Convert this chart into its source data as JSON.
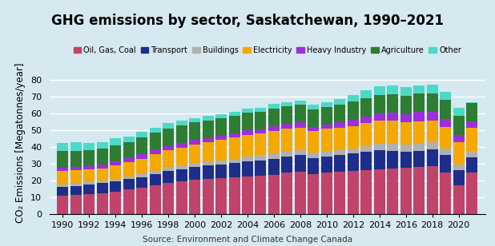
{
  "years": [
    1990,
    1991,
    1992,
    1993,
    1994,
    1995,
    1996,
    1997,
    1998,
    1999,
    2000,
    2001,
    2002,
    2003,
    2004,
    2005,
    2006,
    2007,
    2008,
    2009,
    2010,
    2011,
    2012,
    2013,
    2014,
    2015,
    2016,
    2017,
    2018,
    2019,
    2020,
    2021
  ],
  "sectors": {
    "Oil, Gas, Coal": [
      11.0,
      11.5,
      12.0,
      12.5,
      13.5,
      14.5,
      15.5,
      17.0,
      18.5,
      19.5,
      20.5,
      21.0,
      21.5,
      22.0,
      22.5,
      23.0,
      23.5,
      24.5,
      25.0,
      24.0,
      24.5,
      25.0,
      25.5,
      26.0,
      26.5,
      27.0,
      27.5,
      28.0,
      28.5,
      24.5,
      17.0,
      24.5
    ],
    "Transport": [
      5.0,
      5.2,
      5.5,
      5.8,
      6.0,
      6.2,
      6.5,
      6.8,
      7.0,
      7.2,
      7.5,
      7.8,
      8.0,
      8.5,
      8.8,
      9.0,
      9.5,
      9.8,
      10.0,
      9.5,
      9.8,
      10.0,
      10.5,
      11.0,
      11.5,
      10.5,
      9.5,
      9.8,
      10.0,
      10.5,
      9.0,
      9.5
    ],
    "Buildings": [
      1.5,
      1.5,
      1.5,
      1.5,
      1.5,
      1.5,
      2.0,
      2.0,
      2.5,
      2.5,
      2.5,
      2.5,
      2.5,
      2.5,
      3.0,
      3.0,
      3.0,
      3.0,
      3.0,
      3.0,
      3.0,
      3.0,
      3.0,
      3.5,
      4.0,
      4.5,
      4.5,
      4.5,
      4.5,
      4.0,
      3.5,
      3.5
    ],
    "Electricity": [
      8.0,
      8.0,
      7.5,
      7.5,
      8.0,
      8.5,
      9.0,
      10.0,
      10.0,
      10.5,
      11.0,
      11.5,
      12.0,
      12.5,
      13.0,
      13.0,
      13.5,
      13.5,
      13.5,
      13.0,
      13.5,
      13.5,
      13.5,
      13.5,
      13.5,
      13.5,
      13.0,
      13.0,
      12.5,
      13.0,
      13.5,
      14.0
    ],
    "Heavy Industry": [
      2.0,
      2.0,
      2.0,
      2.0,
      2.5,
      2.5,
      2.5,
      2.5,
      2.5,
      2.5,
      2.5,
      2.5,
      2.5,
      2.5,
      2.5,
      2.5,
      3.0,
      3.0,
      3.0,
      2.5,
      2.5,
      3.0,
      3.5,
      4.0,
      4.5,
      5.0,
      5.0,
      5.5,
      5.5,
      4.5,
      4.0,
      3.5
    ],
    "Agriculture": [
      10.0,
      9.5,
      9.5,
      9.5,
      9.5,
      9.5,
      10.0,
      10.0,
      10.5,
      10.5,
      10.5,
      10.5,
      10.5,
      10.5,
      10.5,
      10.5,
      10.5,
      10.5,
      10.5,
      10.5,
      10.5,
      10.5,
      11.0,
      11.0,
      11.0,
      11.0,
      11.0,
      11.0,
      11.0,
      11.5,
      11.5,
      11.0
    ],
    "Other": [
      5.0,
      5.0,
      4.5,
      4.0,
      4.0,
      3.5,
      3.5,
      3.0,
      3.0,
      3.0,
      2.5,
      2.5,
      2.5,
      2.5,
      2.5,
      2.5,
      2.5,
      2.5,
      2.5,
      2.5,
      3.0,
      3.5,
      4.0,
      4.5,
      5.0,
      5.0,
      5.0,
      5.0,
      5.0,
      5.0,
      5.0,
      0.5
    ]
  },
  "colors": {
    "Oil, Gas, Coal": "#c0436a",
    "Transport": "#1f2d8a",
    "Buildings": "#b0b0b0",
    "Electricity": "#f5a800",
    "Heavy Industry": "#9b30d9",
    "Agriculture": "#2e7d32",
    "Other": "#4dd9c8"
  },
  "title": "GHG emissions by sector, Saskatchewan, 1990–2021",
  "ylabel": "CO₂ Emissions [Megatonnes/year]",
  "source": "Source: Environment and Climate Change Canada",
  "ylim": [
    0,
    85
  ],
  "yticks": [
    0,
    10,
    20,
    30,
    40,
    50,
    60,
    70,
    80
  ],
  "bg_color": "#d6e8f0",
  "title_fontsize": 12,
  "label_fontsize": 8.5,
  "tick_fontsize": 8
}
